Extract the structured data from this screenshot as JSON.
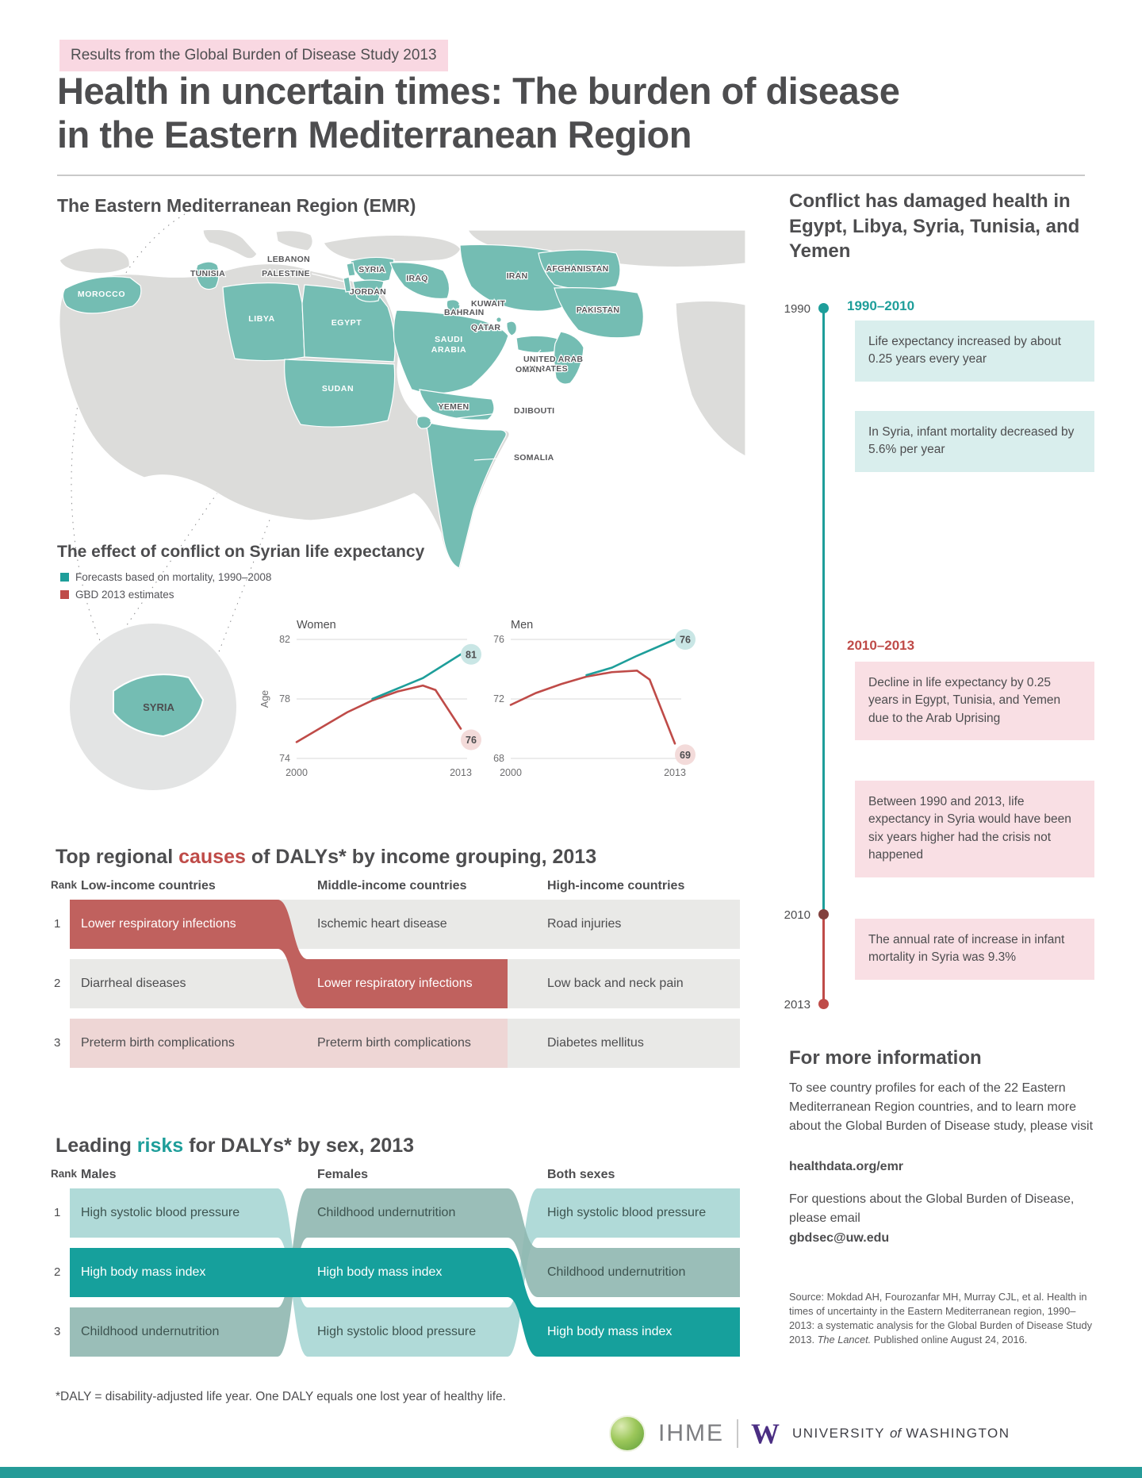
{
  "badge": "Results from the Global Burden of Disease Study 2013",
  "title": {
    "line1": "Health in uncertain times: The burden of disease",
    "line2": "in the Eastern Mediterranean Region"
  },
  "colors": {
    "teal": "#1e9e9a",
    "red": "#bf4b48",
    "map_teal": "#74bdb3",
    "salmon_cell": "#c0615e",
    "pink_cell": "#eed6d5",
    "gray_cell": "#e9e9e7",
    "band_light_teal": "#a7d6d4",
    "band_sage": "#8fb7b0",
    "band_teal": "#16a09c",
    "box_teal": "#d9eeed",
    "box_pink": "#f9dfe4",
    "badge_bg": "#f9d8e2"
  },
  "map": {
    "title": "The Eastern Mediterranean Region (EMR)",
    "inset_label": "SYRIA",
    "labels": {
      "morocco": "MOROCCO",
      "tunisia": "TUNISIA",
      "libya": "LIBYA",
      "egypt": "EGYPT",
      "sudan": "SUDAN",
      "lebanon": "LEBANON",
      "palestine": "PALESTINE",
      "syria": "SYRIA",
      "jordan": "JORDAN",
      "iraq": "IRAQ",
      "iran": "IRAN",
      "kuwait": "KUWAIT",
      "bahrain": "BAHRAIN",
      "qatar": "QATAR",
      "saudi1": "SAUDI",
      "saudi2": "ARABIA",
      "uae1": "UNITED ARAB",
      "uae2": "EMIRATES",
      "oman": "OMAN",
      "yemen": "YEMEN",
      "djibouti": "DJIBOUTI",
      "somalia": "SOMALIA",
      "afghanistan": "AFGHANISTAN",
      "pakistan": "PAKISTAN"
    }
  },
  "syria": {
    "heading": "The effect of conflict on Syrian life expectancy",
    "legend": [
      {
        "label": "Forecasts based on mortality, 1990–2008"
      },
      {
        "label": "GBD 2013 estimates"
      }
    ]
  },
  "chart_data": [
    {
      "type": "line",
      "title": "Women",
      "xlabel": "",
      "ylabel": "Age",
      "xlim": [
        2000,
        2013
      ],
      "ylim": [
        74,
        82
      ],
      "xticks": [
        2000,
        2013
      ],
      "yticks": [
        74,
        78,
        82
      ],
      "series": [
        {
          "name": "GBD 2013 estimates",
          "color": "#bf4b48",
          "bubble_fill": "#f3dbda",
          "bubble_dy": 14,
          "end_label": "76",
          "points": [
            [
              2000,
              75.1
            ],
            [
              2002,
              76.1
            ],
            [
              2004,
              77.1
            ],
            [
              2006,
              77.9
            ],
            [
              2008,
              78.5
            ],
            [
              2010,
              78.9
            ],
            [
              2011,
              78.6
            ],
            [
              2013,
              76
            ]
          ]
        },
        {
          "name": "Forecasts based on mortality, 1990–2008",
          "color": "#1e9e9a",
          "bubble_fill": "#c9e6e5",
          "bubble_dy": 0,
          "end_label": "81",
          "points": [
            [
              2006,
              78.0
            ],
            [
              2008,
              78.7
            ],
            [
              2010,
              79.4
            ],
            [
              2013,
              81
            ]
          ]
        }
      ]
    },
    {
      "type": "line",
      "title": "Men",
      "xlabel": "",
      "ylabel": "",
      "xlim": [
        2000,
        2013
      ],
      "ylim": [
        68,
        76
      ],
      "xticks": [
        2000,
        2013
      ],
      "yticks": [
        68,
        72,
        76
      ],
      "series": [
        {
          "name": "GBD 2013 estimates",
          "color": "#bf4b48",
          "bubble_fill": "#f3dbda",
          "bubble_dy": 14,
          "end_label": "69",
          "points": [
            [
              2000,
              71.6
            ],
            [
              2002,
              72.4
            ],
            [
              2004,
              73.0
            ],
            [
              2006,
              73.5
            ],
            [
              2008,
              73.8
            ],
            [
              2010,
              73.9
            ],
            [
              2011,
              73.3
            ],
            [
              2013,
              69
            ]
          ]
        },
        {
          "name": "Forecasts based on mortality, 1990–2008",
          "color": "#1e9e9a",
          "bubble_fill": "#c9e6e5",
          "bubble_dy": 0,
          "end_label": "76",
          "points": [
            [
              2006,
              73.6
            ],
            [
              2008,
              74.1
            ],
            [
              2010,
              74.9
            ],
            [
              2013,
              76
            ]
          ]
        }
      ]
    }
  ],
  "timeline": {
    "heading": "Conflict has damaged health in Egypt, Libya, Syria, Tunisia, and Yemen",
    "markers": [
      "1990",
      "2010",
      "2013"
    ],
    "era1": {
      "label": "1990–2010",
      "boxes": [
        "Life expectancy increased by about 0.25 years every year",
        "In Syria, infant mortality decreased by 5.6% per year"
      ]
    },
    "era2": {
      "label": "2010–2013",
      "boxes": [
        "Decline in life expectancy by 0.25 years in Egypt, Tunisia, and Yemen due to the Arab Uprising",
        "Between 1990 and 2013, life expectancy in Syria would have been six years higher had the crisis not happened",
        "The annual rate of increase in infant mortality in Syria was 9.3%"
      ]
    }
  },
  "causes": {
    "prefix": "Top regional ",
    "highlight": "causes",
    "suffix": " of DALYs* by income grouping, 2013",
    "rank_header": "Rank",
    "columns": [
      "Low-income countries",
      "Middle-income countries",
      "High-income countries"
    ],
    "ranks": [
      "1",
      "2",
      "3"
    ],
    "cells": [
      [
        "Lower respiratory infections",
        "Ischemic heart disease",
        "Road injuries"
      ],
      [
        "Diarrheal diseases",
        "Lower respiratory infections",
        "Low back and neck pain"
      ],
      [
        "Preterm birth complications",
        "Preterm birth complications",
        "Diabetes mellitus"
      ]
    ]
  },
  "risks": {
    "prefix": "Leading ",
    "highlight": "risks",
    "suffix": " for DALYs* by sex, 2013",
    "rank_header": "Rank",
    "columns": [
      "Males",
      "Females",
      "Both sexes"
    ],
    "ranks": [
      "1",
      "2",
      "3"
    ],
    "cells": [
      [
        "High systolic blood pressure",
        "Childhood undernutrition",
        "High systolic blood pressure"
      ],
      [
        "High body mass index",
        "High body mass index",
        "Childhood undernutrition"
      ],
      [
        "Childhood undernutrition",
        "High systolic blood pressure",
        "High body mass index"
      ]
    ]
  },
  "footnote": "*DALY = disability-adjusted life year. One DALY equals one lost year of healthy life.",
  "more_info": {
    "heading": "For more information",
    "p1": "To see country profiles for each of the 22 Eastern Mediterranean Region countries, and to learn more about the Global Burden of Disease study, please visit",
    "link1": "healthdata.org/emr",
    "p2": "For questions about the Global Burden of Disease, please email",
    "link2": "gbdsec@uw.edu"
  },
  "source": {
    "prefix": "Source: Mokdad AH, Fourozanfar MH, Murray CJL, et al. Health in times of uncertainty in the Eastern Mediterranean region, 1990–2013: a systematic analysis for the Global Burden of Disease Study 2013. ",
    "italic": "The Lancet.",
    "suffix": " Published online August 24, 2016."
  },
  "footer": {
    "ihme": "IHME",
    "uw_w": "W",
    "uw_university": "UNIVERSITY",
    "uw_of": "of",
    "uw_washington": "WASHINGTON"
  }
}
